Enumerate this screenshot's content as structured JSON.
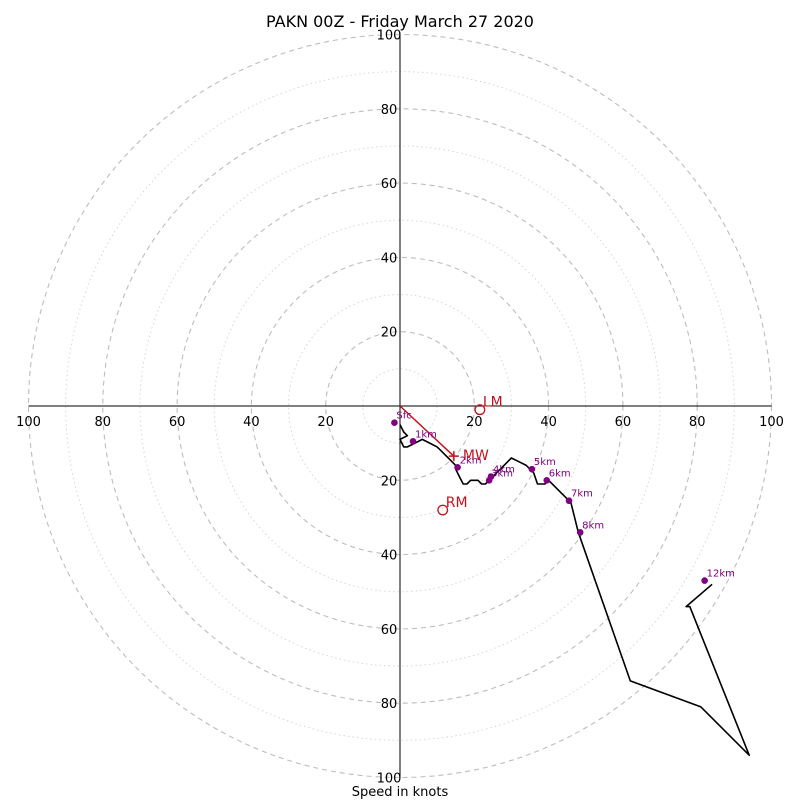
{
  "chart_data": {
    "type": "hodograph",
    "title": "PAKN 00Z - Friday March 27 2020",
    "xlabel": "Speed in knots",
    "range": [
      -100,
      100
    ],
    "rings_major": [
      20,
      40,
      60,
      80,
      100
    ],
    "rings_minor": [
      10,
      30,
      50,
      70,
      90
    ],
    "ticks_x": [
      "100",
      "80",
      "60",
      "40",
      "20",
      "20",
      "40",
      "60",
      "80",
      "100"
    ],
    "ticks_y": [
      "100",
      "80",
      "60",
      "40",
      "20",
      "20",
      "40",
      "60",
      "80",
      "100"
    ],
    "colors": {
      "trace": "#000000",
      "height_marker": "#800080",
      "motion": "#c0141c",
      "major_grid": "#bdbdbd",
      "minor_grid": "#d6d6d6"
    },
    "trace": [
      [
        0,
        -5
      ],
      [
        1,
        -7
      ],
      [
        2,
        -8
      ],
      [
        0,
        -9
      ],
      [
        1,
        -11
      ],
      [
        2,
        -11
      ],
      [
        4,
        -10
      ],
      [
        6,
        -9
      ],
      [
        8,
        -10
      ],
      [
        10,
        -11
      ],
      [
        11,
        -12
      ],
      [
        12,
        -13
      ],
      [
        13,
        -14
      ],
      [
        14,
        -15
      ],
      [
        15,
        -16
      ],
      [
        15,
        -17
      ],
      [
        16,
        -19
      ],
      [
        17,
        -21
      ],
      [
        18,
        -21
      ],
      [
        19,
        -20
      ],
      [
        21,
        -20
      ],
      [
        22,
        -21
      ],
      [
        23,
        -21
      ],
      [
        24,
        -20
      ],
      [
        25,
        -19
      ],
      [
        26,
        -18
      ],
      [
        27,
        -17
      ],
      [
        28,
        -16
      ],
      [
        29,
        -15
      ],
      [
        30,
        -14
      ],
      [
        32,
        -15
      ],
      [
        34,
        -16
      ],
      [
        35,
        -17
      ],
      [
        36,
        -18
      ],
      [
        37,
        -21
      ],
      [
        38,
        -21
      ],
      [
        39,
        -21
      ],
      [
        40,
        -20
      ],
      [
        43,
        -23
      ],
      [
        46,
        -26
      ],
      [
        48,
        -34
      ],
      [
        62,
        -74
      ],
      [
        81,
        -81
      ],
      [
        92,
        -92
      ],
      [
        94,
        -94
      ],
      [
        78,
        -54
      ],
      [
        77,
        -54
      ],
      [
        84,
        -48
      ]
    ],
    "height_markers": [
      {
        "label": "Sfc",
        "u": -1.5,
        "v": -4.5
      },
      {
        "label": "1km",
        "u": 3.5,
        "v": -9.5
      },
      {
        "label": "2km",
        "u": 15.5,
        "v": -16.5
      },
      {
        "label": "3km",
        "u": 24,
        "v": -20
      },
      {
        "label": "4km",
        "u": 24.5,
        "v": -19
      },
      {
        "label": "5km",
        "u": 35.5,
        "v": -17
      },
      {
        "label": "6km",
        "u": 39.5,
        "v": -20
      },
      {
        "label": "7km",
        "u": 45.5,
        "v": -25.5
      },
      {
        "label": "8km",
        "u": 48.5,
        "v": -34
      },
      {
        "label": "12km",
        "u": 82,
        "v": -47
      }
    ],
    "storm_motion": {
      "LM": {
        "label": "LM",
        "u": 21.5,
        "v": -1
      },
      "RM": {
        "label": "RM",
        "u": 11.5,
        "v": -28
      },
      "MW": {
        "label": "MW",
        "u": 14.5,
        "v": -13.5
      }
    }
  }
}
